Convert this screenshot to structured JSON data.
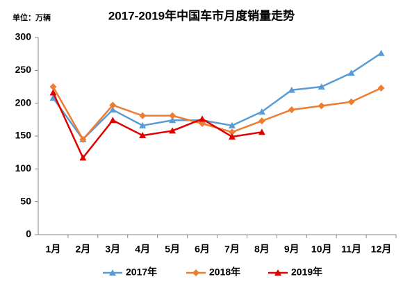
{
  "chart_data": {
    "type": "line",
    "title": "2017-2019年中国车市月度销量走势",
    "unit_label": "单位：万辆",
    "categories": [
      "1月",
      "2月",
      "3月",
      "4月",
      "5月",
      "6月",
      "7月",
      "8月",
      "9月",
      "10月",
      "11月",
      "12月"
    ],
    "series": [
      {
        "name": "2017年",
        "color": "#5b9bd5",
        "marker": "triangle",
        "values": [
          208,
          145,
          190,
          166,
          174,
          174,
          166,
          187,
          220,
          225,
          246,
          276
        ]
      },
      {
        "name": "2018年",
        "color": "#ed7d31",
        "marker": "diamond",
        "values": [
          225,
          145,
          197,
          181,
          181,
          169,
          156,
          173,
          190,
          196,
          202,
          223
        ]
      },
      {
        "name": "2019年",
        "color": "#e00000",
        "marker": "triangle",
        "values": [
          216,
          117,
          174,
          151,
          158,
          176,
          149,
          156,
          null,
          null,
          null,
          null
        ]
      }
    ],
    "ylim": [
      0,
      300
    ],
    "yticks": [
      0,
      50,
      100,
      150,
      200,
      250,
      300
    ],
    "grid": false,
    "legend": "bottom"
  }
}
